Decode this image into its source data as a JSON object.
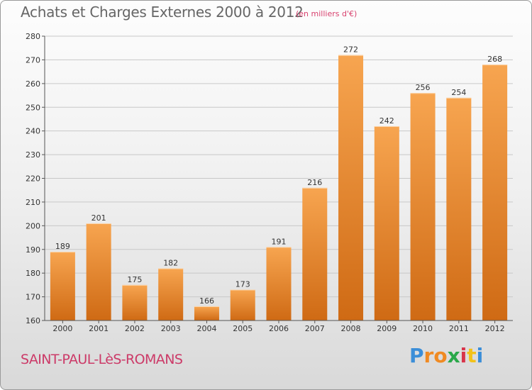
{
  "title": "Achats et Charges Externes 2000 à 2012",
  "unit": "(en milliers d'€)",
  "city": "SAINT-PAUL-LèS-ROMANS",
  "logo": {
    "letters": [
      "P",
      "r",
      "o",
      "x",
      "i",
      "t",
      "i"
    ],
    "colors": [
      "#3b8ed8",
      "#f08a22",
      "#f08a22",
      "#2aa84a",
      "#d8344a",
      "#f2c21a",
      "#3b8ed8"
    ]
  },
  "colors": {
    "bar_light": "#f7a550",
    "bar_dark": "#cf6a14",
    "title": "#666666",
    "city": "#cc3a68"
  },
  "chart_data": {
    "type": "bar",
    "categories": [
      "2000",
      "2001",
      "2002",
      "2003",
      "2004",
      "2005",
      "2006",
      "2007",
      "2008",
      "2009",
      "2010",
      "2011",
      "2012"
    ],
    "values": [
      189,
      201,
      175,
      182,
      166,
      173,
      191,
      216,
      272,
      242,
      256,
      254,
      268
    ],
    "ylim": [
      160,
      280
    ],
    "yticks": [
      160,
      170,
      180,
      190,
      200,
      210,
      220,
      230,
      240,
      250,
      260,
      270,
      280
    ],
    "grid": true,
    "xlabel": "",
    "ylabel": ""
  }
}
